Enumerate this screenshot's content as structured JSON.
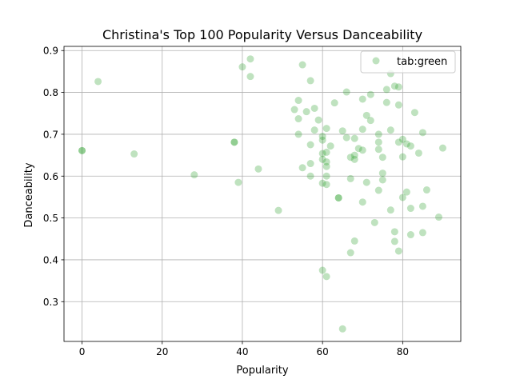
{
  "chart_data": {
    "type": "scatter",
    "title": "Christina's Top 100 Popularity Versus Danceability",
    "xlabel": "Popularity",
    "ylabel": "Danceability",
    "xlim": [
      -4.5,
      94.5
    ],
    "ylim": [
      0.205,
      0.91
    ],
    "xticks": [
      0,
      20,
      40,
      60,
      80
    ],
    "yticks": [
      0.3,
      0.4,
      0.5,
      0.6,
      0.7,
      0.8,
      0.9
    ],
    "grid": true,
    "legend_position": "top-right",
    "series": [
      {
        "name": "tab:green",
        "color": "#2ca02c",
        "alpha": 0.3,
        "points": [
          [
            0,
            0.661
          ],
          [
            0,
            0.661
          ],
          [
            4,
            0.826
          ],
          [
            13,
            0.653
          ],
          [
            28,
            0.603
          ],
          [
            38,
            0.681
          ],
          [
            38,
            0.681
          ],
          [
            39,
            0.585
          ],
          [
            40,
            0.861
          ],
          [
            42,
            0.88
          ],
          [
            42,
            0.838
          ],
          [
            44,
            0.617
          ],
          [
            49,
            0.518
          ],
          [
            53,
            0.759
          ],
          [
            54,
            0.781
          ],
          [
            54,
            0.737
          ],
          [
            54,
            0.7
          ],
          [
            55,
            0.866
          ],
          [
            55,
            0.62
          ],
          [
            56,
            0.754
          ],
          [
            57,
            0.828
          ],
          [
            57,
            0.675
          ],
          [
            57,
            0.63
          ],
          [
            57,
            0.6
          ],
          [
            58,
            0.762
          ],
          [
            58,
            0.71
          ],
          [
            59,
            0.734
          ],
          [
            60,
            0.695
          ],
          [
            60,
            0.686
          ],
          [
            60,
            0.654
          ],
          [
            60,
            0.64
          ],
          [
            60,
            0.583
          ],
          [
            60,
            0.375
          ],
          [
            61,
            0.714
          ],
          [
            61,
            0.657
          ],
          [
            61,
            0.634
          ],
          [
            61,
            0.623
          ],
          [
            61,
            0.6
          ],
          [
            61,
            0.58
          ],
          [
            61,
            0.36
          ],
          [
            62,
            0.672
          ],
          [
            63,
            0.775
          ],
          [
            64,
            0.548
          ],
          [
            64,
            0.548
          ],
          [
            65,
            0.708
          ],
          [
            65,
            0.235
          ],
          [
            66,
            0.801
          ],
          [
            66,
            0.692
          ],
          [
            67,
            0.645
          ],
          [
            67,
            0.594
          ],
          [
            67,
            0.417
          ],
          [
            68,
            0.69
          ],
          [
            68,
            0.65
          ],
          [
            68,
            0.64
          ],
          [
            68,
            0.445
          ],
          [
            69,
            0.666
          ],
          [
            70,
            0.784
          ],
          [
            70,
            0.712
          ],
          [
            70,
            0.662
          ],
          [
            70,
            0.538
          ],
          [
            71,
            0.745
          ],
          [
            71,
            0.585
          ],
          [
            72,
            0.795
          ],
          [
            72,
            0.733
          ],
          [
            73,
            0.489
          ],
          [
            74,
            0.7
          ],
          [
            74,
            0.681
          ],
          [
            74,
            0.664
          ],
          [
            74,
            0.566
          ],
          [
            75,
            0.645
          ],
          [
            75,
            0.607
          ],
          [
            75,
            0.591
          ],
          [
            76,
            0.807
          ],
          [
            76,
            0.776
          ],
          [
            77,
            0.845
          ],
          [
            77,
            0.71
          ],
          [
            77,
            0.519
          ],
          [
            78,
            0.815
          ],
          [
            78,
            0.467
          ],
          [
            78,
            0.444
          ],
          [
            79,
            0.813
          ],
          [
            79,
            0.77
          ],
          [
            79,
            0.681
          ],
          [
            79,
            0.421
          ],
          [
            80,
            0.688
          ],
          [
            80,
            0.646
          ],
          [
            80,
            0.549
          ],
          [
            81,
            0.677
          ],
          [
            81,
            0.562
          ],
          [
            82,
            0.672
          ],
          [
            82,
            0.523
          ],
          [
            82,
            0.46
          ],
          [
            83,
            0.752
          ],
          [
            84,
            0.655
          ],
          [
            85,
            0.704
          ],
          [
            85,
            0.528
          ],
          [
            85,
            0.465
          ],
          [
            86,
            0.567
          ],
          [
            89,
            0.502
          ],
          [
            90,
            0.667
          ]
        ]
      }
    ]
  }
}
